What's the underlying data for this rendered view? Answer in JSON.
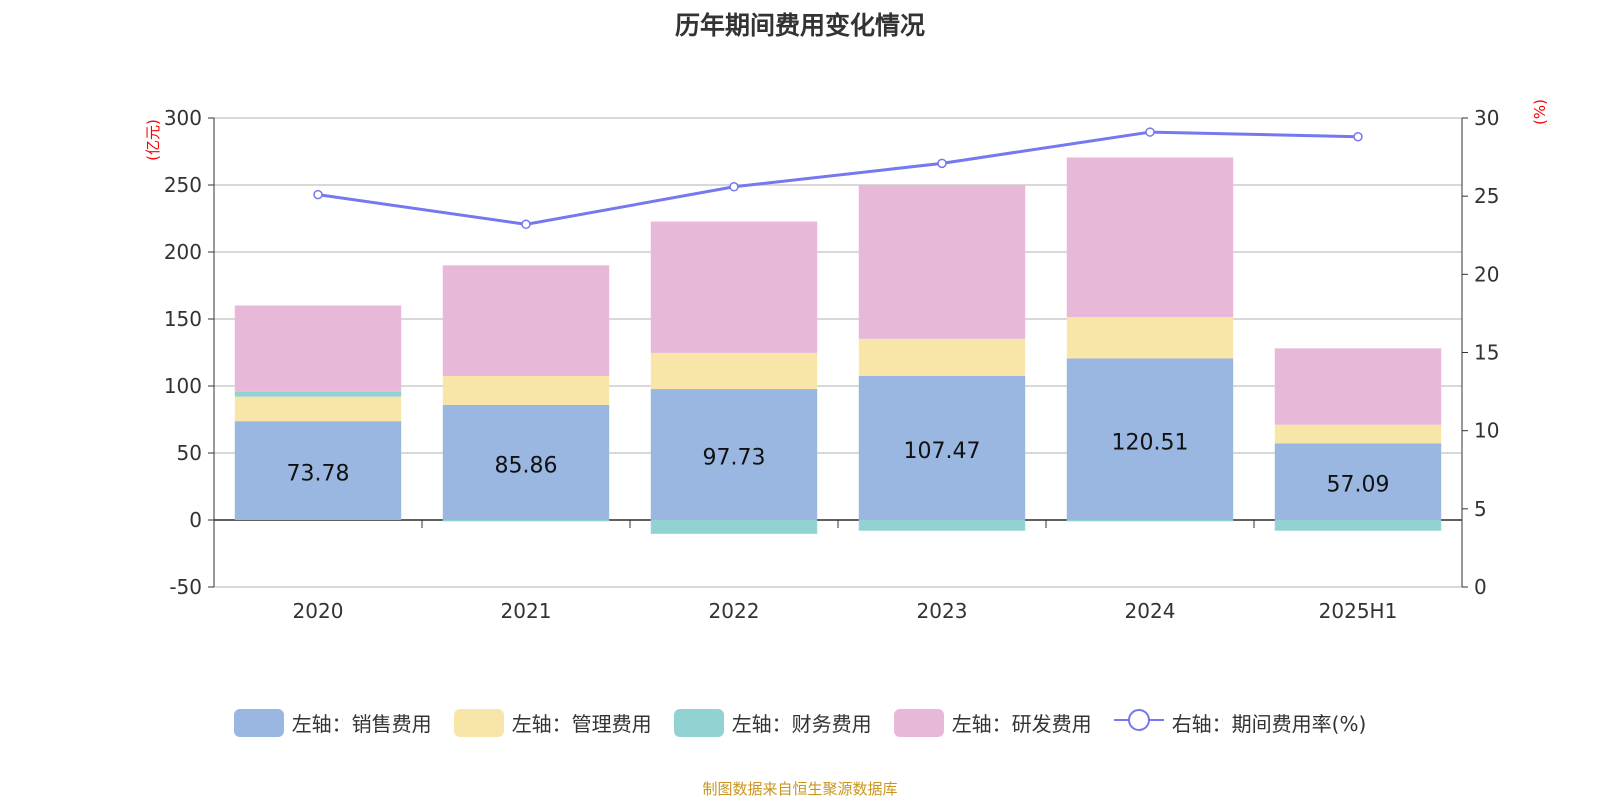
{
  "title": "历年期间费用变化情况",
  "source": "制图数据来自恒生聚源数据库",
  "chart_data": {
    "type": "bar",
    "stacked": true,
    "title": "历年期间费用变化情况",
    "categories": [
      "2020",
      "2021",
      "2022",
      "2023",
      "2024",
      "2025H1"
    ],
    "left_axis": {
      "label": "(亿元)",
      "range": [
        -50,
        300
      ],
      "ticks": [
        "-50",
        "0",
        "50",
        "100",
        "150",
        "200",
        "250",
        "300"
      ]
    },
    "right_axis": {
      "label": "(%)",
      "range": [
        0,
        30
      ],
      "ticks": [
        "0",
        "5",
        "10",
        "15",
        "20",
        "25",
        "30"
      ]
    },
    "grid": true,
    "legend_position": "bottom",
    "series": [
      {
        "name": "左轴：销售费用",
        "axis": "left",
        "type": "bar",
        "color": "#9ab7e1",
        "values": [
          73.78,
          85.86,
          97.73,
          107.47,
          120.51,
          57.09
        ],
        "labels": [
          "73.78",
          "85.86",
          "97.73",
          "107.47",
          "120.51",
          "57.09"
        ]
      },
      {
        "name": "左轴：管理费用",
        "axis": "left",
        "type": "bar",
        "color": "#f8e6a9",
        "values": [
          18.3,
          21.6,
          27.0,
          27.7,
          31.0,
          14.0
        ]
      },
      {
        "name": "左轴：财务费用",
        "axis": "left",
        "type": "bar",
        "color": "#93d2d2",
        "values": [
          3.7,
          -1.0,
          -10.3,
          -8.0,
          -1.0,
          -8.0
        ]
      },
      {
        "name": "左轴：研发费用",
        "axis": "left",
        "type": "bar",
        "color": "#e7b8d8",
        "values": [
          64.3,
          82.6,
          98.0,
          114.6,
          119.0,
          57.0
        ]
      },
      {
        "name": "右轴：期间费用率(%)",
        "axis": "right",
        "type": "line",
        "color": "#7578ee",
        "values": [
          25.1,
          23.2,
          25.6,
          27.1,
          29.1,
          28.8
        ]
      }
    ]
  }
}
